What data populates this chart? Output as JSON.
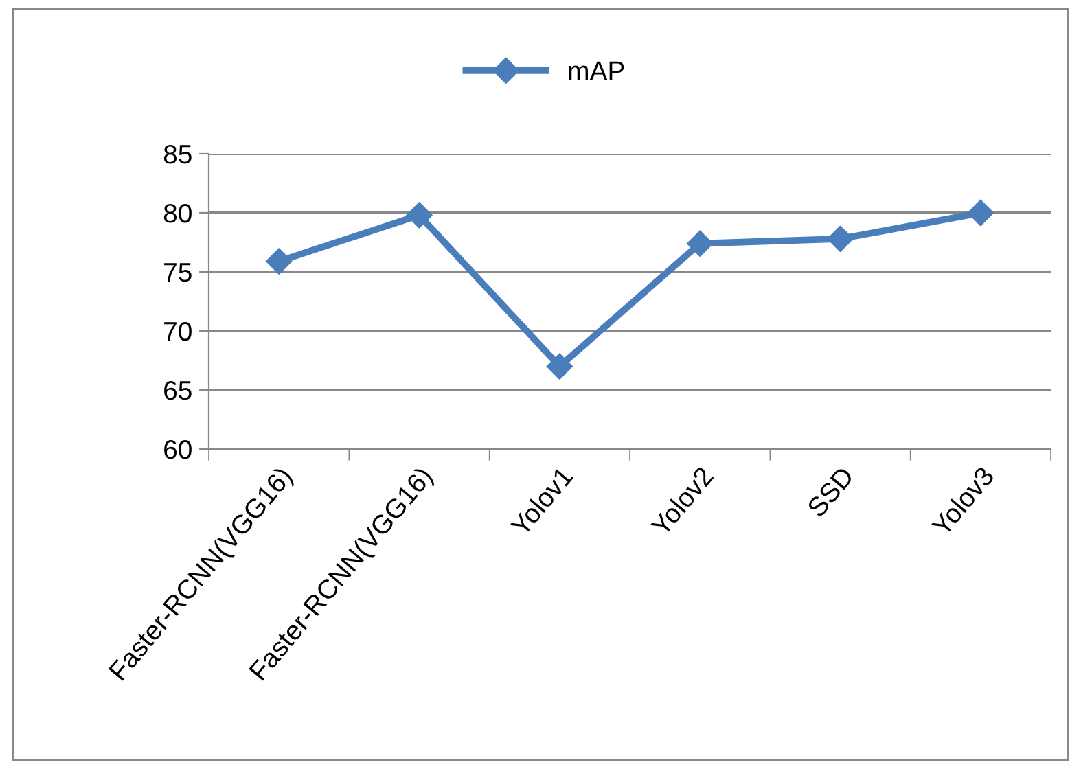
{
  "chart_data": {
    "type": "line",
    "categories": [
      "Faster-RCNN(VGG16)",
      "Faster-RCNN(VGG16)",
      "Yolov1",
      "Yolov2",
      "SSD",
      "Yolov3"
    ],
    "series": [
      {
        "name": "mAP",
        "color": "#4a7ebb",
        "values": [
          75.9,
          79.8,
          67.0,
          77.4,
          77.8,
          80.0
        ]
      }
    ],
    "ylim": [
      60,
      85
    ],
    "yticks": [
      60,
      65,
      70,
      75,
      80,
      85
    ],
    "grid": "y",
    "legend": "top",
    "marker": "diamond",
    "line_style": "solid"
  }
}
